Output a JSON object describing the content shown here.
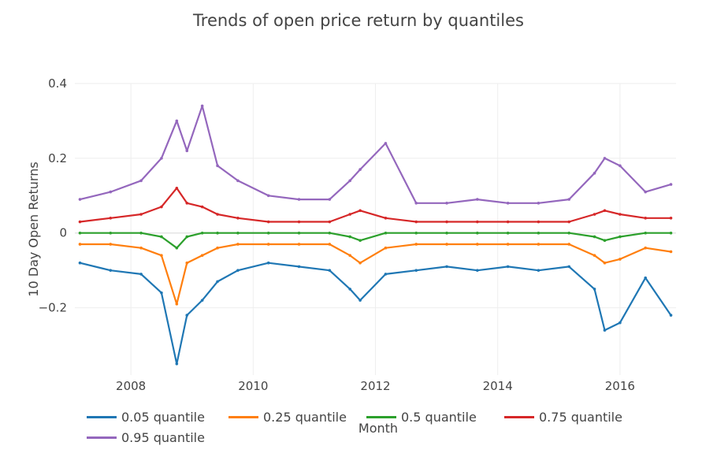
{
  "chart_data": {
    "type": "line",
    "title": "Trends of open price return by quantiles",
    "xlabel": "Month",
    "ylabel": "10 Day Open Returns",
    "x_ticks": [
      "2008",
      "2010",
      "2012",
      "2014",
      "2016"
    ],
    "y_ticks": [
      "0.4",
      "0.2",
      "0",
      "−0.2"
    ],
    "xlim": [
      "2007-02",
      "2016-12"
    ],
    "ylim": [
      -0.38,
      0.4
    ],
    "grid": true,
    "legend_position": "bottom",
    "series": [
      {
        "name": "0.05 quantile",
        "color": "#1f77b4",
        "x": [
          "2007-03",
          "2007-09",
          "2008-03",
          "2008-07",
          "2008-10",
          "2008-12",
          "2009-03",
          "2009-06",
          "2009-10",
          "2010-04",
          "2010-10",
          "2011-04",
          "2011-08",
          "2011-10",
          "2012-03",
          "2012-09",
          "2013-03",
          "2013-09",
          "2014-03",
          "2014-09",
          "2015-03",
          "2015-08",
          "2015-10",
          "2016-01",
          "2016-06",
          "2016-11"
        ],
        "values": [
          -0.08,
          -0.1,
          -0.11,
          -0.16,
          -0.35,
          -0.22,
          -0.18,
          -0.13,
          -0.1,
          -0.08,
          -0.09,
          -0.1,
          -0.15,
          -0.18,
          -0.11,
          -0.1,
          -0.09,
          -0.1,
          -0.09,
          -0.1,
          -0.09,
          -0.15,
          -0.26,
          -0.24,
          -0.12,
          -0.22
        ]
      },
      {
        "name": "0.25 quantile",
        "color": "#ff7f0e",
        "x": [
          "2007-03",
          "2007-09",
          "2008-03",
          "2008-07",
          "2008-10",
          "2008-12",
          "2009-03",
          "2009-06",
          "2009-10",
          "2010-04",
          "2010-10",
          "2011-04",
          "2011-08",
          "2011-10",
          "2012-03",
          "2012-09",
          "2013-03",
          "2013-09",
          "2014-03",
          "2014-09",
          "2015-03",
          "2015-08",
          "2015-10",
          "2016-01",
          "2016-06",
          "2016-11"
        ],
        "values": [
          -0.03,
          -0.03,
          -0.04,
          -0.06,
          -0.19,
          -0.08,
          -0.06,
          -0.04,
          -0.03,
          -0.03,
          -0.03,
          -0.03,
          -0.06,
          -0.08,
          -0.04,
          -0.03,
          -0.03,
          -0.03,
          -0.03,
          -0.03,
          -0.03,
          -0.06,
          -0.08,
          -0.07,
          -0.04,
          -0.05
        ]
      },
      {
        "name": "0.5 quantile",
        "color": "#2ca02c",
        "x": [
          "2007-03",
          "2007-09",
          "2008-03",
          "2008-07",
          "2008-10",
          "2008-12",
          "2009-03",
          "2009-06",
          "2009-10",
          "2010-04",
          "2010-10",
          "2011-04",
          "2011-08",
          "2011-10",
          "2012-03",
          "2012-09",
          "2013-03",
          "2013-09",
          "2014-03",
          "2014-09",
          "2015-03",
          "2015-08",
          "2015-10",
          "2016-01",
          "2016-06",
          "2016-11"
        ],
        "values": [
          0.0,
          0.0,
          0.0,
          -0.01,
          -0.04,
          -0.01,
          0.0,
          0.0,
          0.0,
          0.0,
          0.0,
          0.0,
          -0.01,
          -0.02,
          0.0,
          0.0,
          0.0,
          0.0,
          0.0,
          0.0,
          0.0,
          -0.01,
          -0.02,
          -0.01,
          0.0,
          0.0
        ]
      },
      {
        "name": "0.75 quantile",
        "color": "#d62728",
        "x": [
          "2007-03",
          "2007-09",
          "2008-03",
          "2008-07",
          "2008-10",
          "2008-12",
          "2009-03",
          "2009-06",
          "2009-10",
          "2010-04",
          "2010-10",
          "2011-04",
          "2011-08",
          "2011-10",
          "2012-03",
          "2012-09",
          "2013-03",
          "2013-09",
          "2014-03",
          "2014-09",
          "2015-03",
          "2015-08",
          "2015-10",
          "2016-01",
          "2016-06",
          "2016-11"
        ],
        "values": [
          0.03,
          0.04,
          0.05,
          0.07,
          0.12,
          0.08,
          0.07,
          0.05,
          0.04,
          0.03,
          0.03,
          0.03,
          0.05,
          0.06,
          0.04,
          0.03,
          0.03,
          0.03,
          0.03,
          0.03,
          0.03,
          0.05,
          0.06,
          0.05,
          0.04,
          0.04
        ]
      },
      {
        "name": "0.95 quantile",
        "color": "#9467bd",
        "x": [
          "2007-03",
          "2007-09",
          "2008-03",
          "2008-07",
          "2008-10",
          "2008-12",
          "2009-03",
          "2009-06",
          "2009-10",
          "2010-04",
          "2010-10",
          "2011-04",
          "2011-08",
          "2011-10",
          "2012-03",
          "2012-09",
          "2013-03",
          "2013-09",
          "2014-03",
          "2014-09",
          "2015-03",
          "2015-08",
          "2015-10",
          "2016-01",
          "2016-06",
          "2016-11"
        ],
        "values": [
          0.09,
          0.11,
          0.14,
          0.2,
          0.3,
          0.22,
          0.34,
          0.18,
          0.14,
          0.1,
          0.09,
          0.09,
          0.14,
          0.17,
          0.24,
          0.08,
          0.08,
          0.09,
          0.08,
          0.08,
          0.09,
          0.16,
          0.2,
          0.18,
          0.11,
          0.13
        ]
      }
    ]
  }
}
